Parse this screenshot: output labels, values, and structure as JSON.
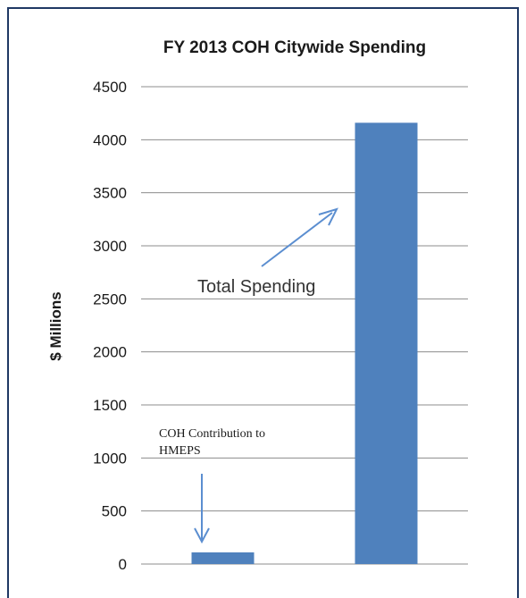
{
  "chart_data": {
    "type": "bar",
    "title": "FY 2013 COH Citywide Spending",
    "xlabel": "",
    "ylabel": "$ Millions",
    "ylim": [
      0,
      4500
    ],
    "yticks": [
      0,
      500,
      1000,
      1500,
      2000,
      2500,
      3000,
      3500,
      4000,
      4500
    ],
    "grid": true,
    "categories": [
      "",
      ""
    ],
    "values": [
      110,
      4160
    ],
    "bar_color": "#4f81bd",
    "annotations": {
      "total": "Total Spending",
      "coh_line1": "COH Contribution to",
      "coh_line2": "HMEPS"
    },
    "arrow_color": "#5b8ed0",
    "frame_color": "#1f3864"
  }
}
